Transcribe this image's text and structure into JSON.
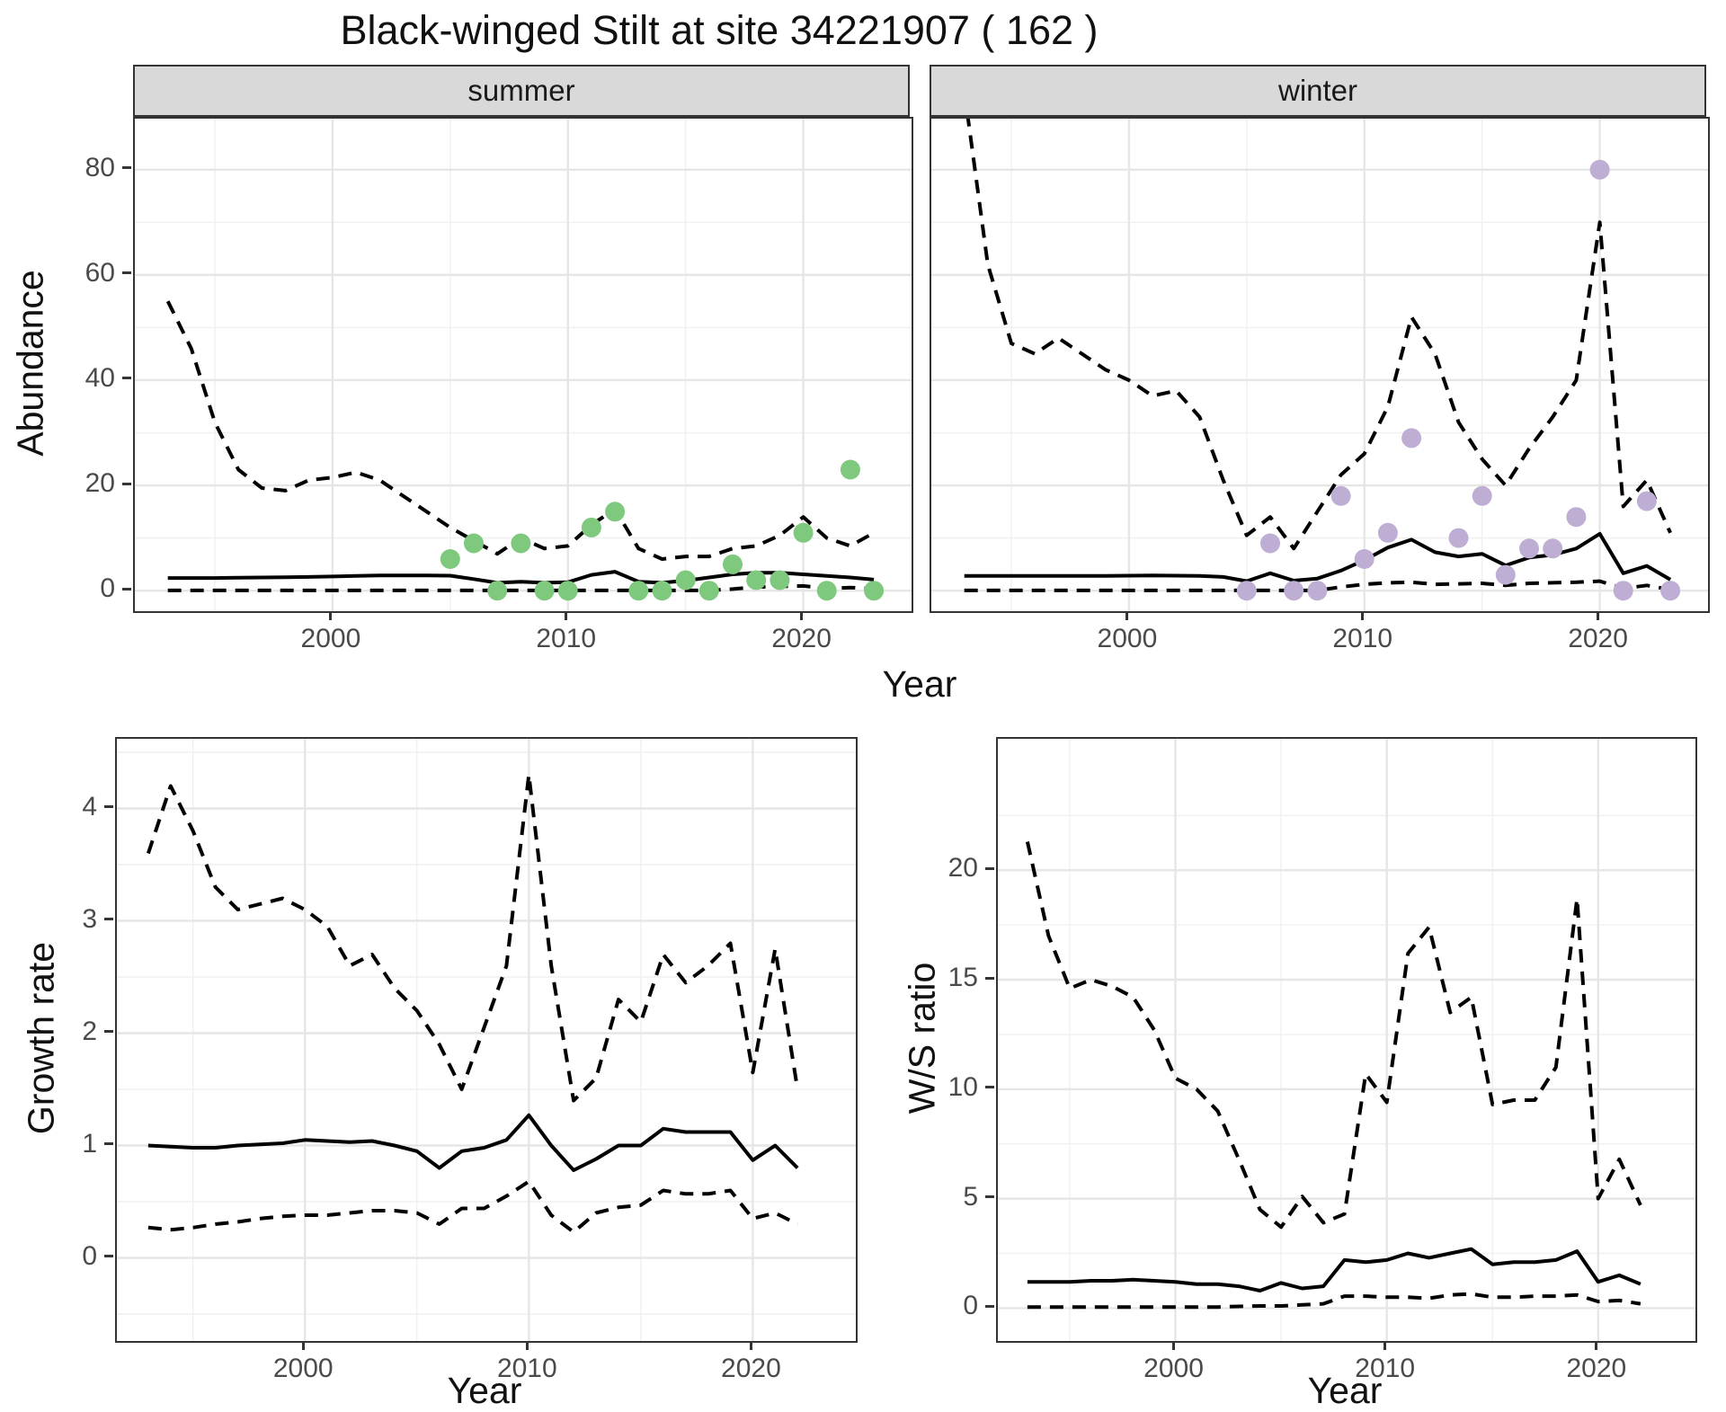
{
  "title": "Black-winged Stilt at site 34221907 ( 162 )",
  "axes": {
    "x_label": "Year",
    "y_label_top": "Abundance"
  },
  "colors": {
    "summer_points": "#7FC97F",
    "winter_points": "#BEAED4",
    "line": "#000000",
    "strip_background": "#D9D9D9",
    "panel_border": "#343434"
  },
  "chart_data": [
    {
      "id": "abundance-summer",
      "type": "line",
      "facet": "summer",
      "xlabel": "Year",
      "ylabel": "Abundance",
      "xlim": [
        1991.6,
        2024.6
      ],
      "ylim": [
        -3.9,
        89.7
      ],
      "grid": true,
      "xticks": {
        "values": [
          2000,
          2010,
          2020
        ],
        "labels": [
          "2000",
          "2010",
          "2020"
        ]
      },
      "yticks": {
        "values": [
          0,
          20,
          40,
          60,
          80
        ],
        "labels": [
          "0",
          "20",
          "40",
          "60",
          "80"
        ]
      },
      "series": [
        {
          "name": "upper-95ci",
          "style": "dashed",
          "x": [
            1993,
            1994,
            1995,
            1996,
            1997,
            1998,
            1999,
            2000,
            2001,
            2002,
            2003,
            2004,
            2005,
            2006,
            2007,
            2008,
            2009,
            2010,
            2011,
            2012,
            2013,
            2014,
            2015,
            2016,
            2017,
            2018,
            2019,
            2020,
            2021,
            2022,
            2023
          ],
          "y": [
            55,
            46,
            32,
            23,
            19.5,
            19,
            21,
            21.5,
            22.5,
            21,
            18,
            15,
            12,
            9.5,
            7,
            10,
            8,
            8.5,
            12.5,
            15.5,
            8,
            6,
            6.5,
            6.5,
            8,
            8.5,
            10.5,
            14,
            10,
            8.5,
            11
          ]
        },
        {
          "name": "estimate",
          "style": "solid",
          "x": [
            1993,
            1994,
            1995,
            1996,
            1997,
            1998,
            1999,
            2000,
            2001,
            2002,
            2003,
            2004,
            2005,
            2006,
            2007,
            2008,
            2009,
            2010,
            2011,
            2012,
            2013,
            2014,
            2015,
            2016,
            2017,
            2018,
            2019,
            2020,
            2021,
            2022,
            2023
          ],
          "y": [
            2.4,
            2.4,
            2.4,
            2.45,
            2.5,
            2.55,
            2.6,
            2.7,
            2.8,
            2.9,
            2.9,
            2.9,
            2.85,
            2.2,
            1.5,
            1.7,
            1.5,
            1.6,
            3.0,
            3.6,
            1.7,
            1.5,
            1.9,
            2.5,
            3.1,
            3.4,
            3.4,
            3.1,
            2.8,
            2.5,
            2.1
          ]
        },
        {
          "name": "lower-95ci",
          "style": "dashed",
          "x": [
            1993,
            1994,
            1995,
            1996,
            1997,
            1998,
            1999,
            2000,
            2001,
            2002,
            2003,
            2004,
            2005,
            2006,
            2007,
            2008,
            2009,
            2010,
            2011,
            2012,
            2013,
            2014,
            2015,
            2016,
            2017,
            2018,
            2019,
            2020,
            2021,
            2022,
            2023
          ],
          "y": [
            0.05,
            0.05,
            0.05,
            0.05,
            0.05,
            0.05,
            0.05,
            0.05,
            0.05,
            0.05,
            0.05,
            0.05,
            0.05,
            0.05,
            0.05,
            0.05,
            0.05,
            0.05,
            0.05,
            0.05,
            0.05,
            0.05,
            0.05,
            0.05,
            0.3,
            0.7,
            0.8,
            0.9,
            0.4,
            0.6,
            0.3
          ]
        }
      ],
      "points": {
        "name": "observed-count",
        "color": "#7FC97F",
        "x": [
          2005,
          2006,
          2007,
          2008,
          2009,
          2010,
          2011,
          2012,
          2013,
          2014,
          2015,
          2016,
          2017,
          2018,
          2019,
          2020,
          2021,
          2022,
          2023
        ],
        "y": [
          6,
          9,
          0,
          9,
          0,
          0,
          12,
          15,
          0,
          0,
          2,
          0,
          5,
          2,
          2,
          11,
          0,
          23,
          0
        ]
      }
    },
    {
      "id": "abundance-winter",
      "type": "line",
      "facet": "winter",
      "xlabel": "Year",
      "ylabel": "Abundance",
      "xlim": [
        1991.6,
        2024.6
      ],
      "ylim": [
        -3.9,
        89.7
      ],
      "grid": true,
      "xticks": {
        "values": [
          2000,
          2010,
          2020
        ],
        "labels": [
          "2000",
          "2010",
          "2020"
        ]
      },
      "yticks": {
        "values": [
          0,
          20,
          40,
          60,
          80
        ],
        "labels": [
          "0",
          "20",
          "40",
          "60",
          "80"
        ]
      },
      "series": [
        {
          "name": "upper-95ci",
          "style": "dashed",
          "x": [
            1993,
            1994,
            1995,
            1996,
            1997,
            1998,
            1999,
            2000,
            2001,
            2002,
            2003,
            2004,
            2005,
            2006,
            2007,
            2008,
            2009,
            2010,
            2011,
            2012,
            2013,
            2014,
            2015,
            2016,
            2017,
            2018,
            2019,
            2020,
            2021,
            2022,
            2023
          ],
          "y": [
            95,
            62,
            47,
            45,
            48,
            45,
            42,
            40,
            37,
            38,
            33,
            21,
            10.5,
            14,
            8,
            15,
            22,
            26,
            35,
            52,
            45,
            32,
            25,
            20,
            27,
            33,
            40,
            70,
            16,
            21,
            11
          ]
        },
        {
          "name": "estimate",
          "style": "solid",
          "x": [
            1993,
            1994,
            1995,
            1996,
            1997,
            1998,
            1999,
            2000,
            2001,
            2002,
            2003,
            2004,
            2005,
            2006,
            2007,
            2008,
            2009,
            2010,
            2011,
            2012,
            2013,
            2014,
            2015,
            2016,
            2017,
            2018,
            2019,
            2020,
            2021,
            2022,
            2023
          ],
          "y": [
            2.8,
            2.8,
            2.8,
            2.8,
            2.8,
            2.8,
            2.8,
            2.85,
            2.9,
            2.85,
            2.8,
            2.6,
            1.8,
            3.3,
            1.9,
            2.3,
            3.8,
            5.8,
            8.2,
            9.7,
            7.3,
            6.5,
            7.0,
            4.8,
            6.3,
            6.8,
            8.0,
            10.8,
            3.3,
            4.7,
            2.1
          ]
        },
        {
          "name": "lower-95ci",
          "style": "dashed",
          "x": [
            1993,
            1994,
            1995,
            1996,
            1997,
            1998,
            1999,
            2000,
            2001,
            2002,
            2003,
            2004,
            2005,
            2006,
            2007,
            2008,
            2009,
            2010,
            2011,
            2012,
            2013,
            2014,
            2015,
            2016,
            2017,
            2018,
            2019,
            2020,
            2021,
            2022,
            2023
          ],
          "y": [
            0.05,
            0.05,
            0.05,
            0.05,
            0.05,
            0.05,
            0.05,
            0.05,
            0.05,
            0.05,
            0.05,
            0.05,
            0.05,
            0.05,
            0.05,
            0.05,
            0.7,
            1.2,
            1.5,
            1.6,
            1.2,
            1.3,
            1.4,
            1.0,
            1.4,
            1.5,
            1.6,
            1.8,
            0.4,
            1.0,
            0.2
          ]
        }
      ],
      "points": {
        "name": "observed-count",
        "color": "#BEAED4",
        "x": [
          2005,
          2006,
          2007,
          2008,
          2009,
          2010,
          2011,
          2012,
          2014,
          2015,
          2016,
          2017,
          2018,
          2019,
          2020,
          2021,
          2022,
          2023
        ],
        "y": [
          0,
          9,
          0,
          0,
          18,
          6,
          11,
          29,
          10,
          18,
          3,
          8,
          8,
          14,
          80,
          0,
          17,
          0
        ]
      }
    },
    {
      "id": "growth-rate",
      "type": "line",
      "facet": "",
      "xlabel": "Year",
      "ylabel": "Growth rate",
      "xlim": [
        1991.6,
        2024.6
      ],
      "ylim": [
        -0.74,
        4.62
      ],
      "grid": true,
      "xticks": {
        "values": [
          2000,
          2010,
          2020
        ],
        "labels": [
          "2000",
          "2010",
          "2020"
        ]
      },
      "yticks": {
        "values": [
          0,
          1,
          2,
          3,
          4
        ],
        "labels": [
          "0",
          "1",
          "2",
          "3",
          "4"
        ]
      },
      "series": [
        {
          "name": "upper-95ci",
          "style": "dashed",
          "x": [
            1993,
            1994,
            1995,
            1996,
            1997,
            1998,
            1999,
            2000,
            2001,
            2002,
            2003,
            2004,
            2005,
            2006,
            2007,
            2008,
            2009,
            2010,
            2011,
            2012,
            2013,
            2014,
            2015,
            2016,
            2017,
            2018,
            2019,
            2020,
            2021,
            2022
          ],
          "y": [
            3.6,
            4.2,
            3.8,
            3.3,
            3.1,
            3.15,
            3.2,
            3.1,
            2.95,
            2.6,
            2.7,
            2.4,
            2.2,
            1.9,
            1.5,
            2.05,
            2.6,
            4.3,
            2.6,
            1.4,
            1.6,
            2.3,
            2.1,
            2.7,
            2.45,
            2.6,
            2.8,
            1.65,
            2.75,
            1.5
          ]
        },
        {
          "name": "estimate",
          "style": "solid",
          "x": [
            1993,
            1994,
            1995,
            1996,
            1997,
            1998,
            1999,
            2000,
            2001,
            2002,
            2003,
            2004,
            2005,
            2006,
            2007,
            2008,
            2009,
            2010,
            2011,
            2012,
            2013,
            2014,
            2015,
            2016,
            2017,
            2018,
            2019,
            2020,
            2021,
            2022
          ],
          "y": [
            1.0,
            0.99,
            0.98,
            0.98,
            1.0,
            1.01,
            1.02,
            1.05,
            1.04,
            1.03,
            1.04,
            1.0,
            0.95,
            0.8,
            0.95,
            0.98,
            1.05,
            1.27,
            1.0,
            0.78,
            0.88,
            1.0,
            1.0,
            1.15,
            1.12,
            1.12,
            1.12,
            0.87,
            1.0,
            0.8
          ]
        },
        {
          "name": "lower-95ci",
          "style": "dashed",
          "x": [
            1993,
            1994,
            1995,
            1996,
            1997,
            1998,
            1999,
            2000,
            2001,
            2002,
            2003,
            2004,
            2005,
            2006,
            2007,
            2008,
            2009,
            2010,
            2011,
            2012,
            2013,
            2014,
            2015,
            2016,
            2017,
            2018,
            2019,
            2020,
            2021,
            2022
          ],
          "y": [
            0.27,
            0.25,
            0.27,
            0.3,
            0.32,
            0.35,
            0.37,
            0.38,
            0.38,
            0.4,
            0.42,
            0.42,
            0.4,
            0.3,
            0.44,
            0.44,
            0.55,
            0.68,
            0.38,
            0.23,
            0.4,
            0.45,
            0.47,
            0.6,
            0.57,
            0.57,
            0.6,
            0.35,
            0.4,
            0.3
          ]
        }
      ],
      "points": null
    },
    {
      "id": "ws-ratio",
      "type": "line",
      "facet": "",
      "xlabel": "Year",
      "ylabel": "W/S ratio",
      "xlim": [
        1991.6,
        2024.6
      ],
      "ylim": [
        -1.5,
        26
      ],
      "grid": true,
      "xticks": {
        "values": [
          2000,
          2010,
          2020
        ],
        "labels": [
          "2000",
          "2010",
          "2020"
        ]
      },
      "yticks": {
        "values": [
          0,
          5,
          10,
          15,
          20
        ],
        "labels": [
          "0",
          "5",
          "10",
          "15",
          "20"
        ]
      },
      "series": [
        {
          "name": "upper-95ci",
          "style": "dashed",
          "x": [
            1993,
            1994,
            1995,
            1996,
            1997,
            1998,
            1999,
            2000,
            2001,
            2002,
            2003,
            2004,
            2005,
            2006,
            2007,
            2008,
            2009,
            2010,
            2011,
            2012,
            2013,
            2014,
            2015,
            2016,
            2017,
            2018,
            2019,
            2020,
            2021,
            2022
          ],
          "y": [
            21.3,
            17,
            14.6,
            15.0,
            14.7,
            14.2,
            12.7,
            10.5,
            10.0,
            9.0,
            6.8,
            4.5,
            3.7,
            5.1,
            3.9,
            4.3,
            10.7,
            9.4,
            16.2,
            17.4,
            13.5,
            14.2,
            9.3,
            9.5,
            9.5,
            11.0,
            18.7,
            5.0,
            6.8,
            4.7
          ]
        },
        {
          "name": "estimate",
          "style": "solid",
          "x": [
            1993,
            1994,
            1995,
            1996,
            1997,
            1998,
            1999,
            2000,
            2001,
            2002,
            2003,
            2004,
            2005,
            2006,
            2007,
            2008,
            2009,
            2010,
            2011,
            2012,
            2013,
            2014,
            2015,
            2016,
            2017,
            2018,
            2019,
            2020,
            2021,
            2022
          ],
          "y": [
            1.2,
            1.2,
            1.2,
            1.25,
            1.25,
            1.3,
            1.25,
            1.2,
            1.1,
            1.1,
            1.0,
            0.8,
            1.15,
            0.9,
            1.0,
            2.2,
            2.1,
            2.2,
            2.5,
            2.3,
            2.5,
            2.7,
            2.0,
            2.1,
            2.1,
            2.2,
            2.6,
            1.2,
            1.5,
            1.1
          ]
        },
        {
          "name": "lower-95ci",
          "style": "dashed",
          "x": [
            1993,
            1994,
            1995,
            1996,
            1997,
            1998,
            1999,
            2000,
            2001,
            2002,
            2003,
            2004,
            2005,
            2006,
            2007,
            2008,
            2009,
            2010,
            2011,
            2012,
            2013,
            2014,
            2015,
            2016,
            2017,
            2018,
            2019,
            2020,
            2021,
            2022
          ],
          "y": [
            0.05,
            0.05,
            0.05,
            0.05,
            0.05,
            0.05,
            0.05,
            0.05,
            0.05,
            0.05,
            0.08,
            0.1,
            0.1,
            0.15,
            0.2,
            0.55,
            0.55,
            0.5,
            0.5,
            0.45,
            0.6,
            0.65,
            0.5,
            0.5,
            0.55,
            0.55,
            0.6,
            0.3,
            0.35,
            0.2
          ]
        }
      ],
      "points": null
    }
  ]
}
